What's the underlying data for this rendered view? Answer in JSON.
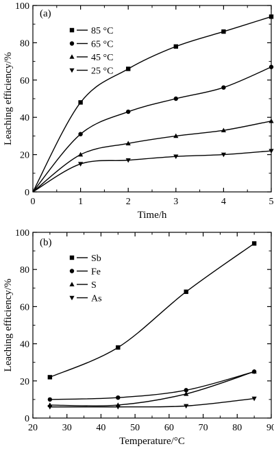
{
  "chart_data": [
    {
      "type": "scatter",
      "panel_label": "(a)",
      "xlabel": "Time/h",
      "ylabel": "Leaching efficiency/%",
      "xlim": [
        0,
        5
      ],
      "ylim": [
        0,
        100
      ],
      "xticks": [
        0,
        1,
        2,
        3,
        4,
        5
      ],
      "yticks": [
        0,
        20,
        40,
        60,
        80,
        100
      ],
      "legend_position": "top-left",
      "grid": false,
      "series": [
        {
          "name": "85 °C",
          "marker": "square",
          "x": [
            0,
            1,
            2,
            3,
            4,
            5
          ],
          "y": [
            0,
            48,
            66,
            78,
            86,
            94
          ]
        },
        {
          "name": "65 °C",
          "marker": "circle",
          "x": [
            0,
            1,
            2,
            3,
            4,
            5
          ],
          "y": [
            0,
            31,
            43,
            50,
            56,
            67
          ]
        },
        {
          "name": "45 °C",
          "marker": "triangle-up",
          "x": [
            0,
            1,
            2,
            3,
            4,
            5
          ],
          "y": [
            0,
            20,
            26,
            30,
            33,
            38
          ]
        },
        {
          "name": "25 °C",
          "marker": "triangle-down",
          "x": [
            0,
            1,
            2,
            3,
            4,
            5
          ],
          "y": [
            0,
            15,
            17,
            19,
            20,
            22
          ]
        }
      ]
    },
    {
      "type": "scatter",
      "panel_label": "(b)",
      "xlabel": "Temperature/°C",
      "ylabel": "Leaching efficiency/%",
      "xlim": [
        20,
        90
      ],
      "ylim": [
        0,
        100
      ],
      "xticks": [
        20,
        30,
        40,
        50,
        60,
        70,
        80,
        90
      ],
      "yticks": [
        0,
        20,
        40,
        60,
        80,
        100
      ],
      "legend_position": "top-left",
      "grid": false,
      "series": [
        {
          "name": "Sb",
          "marker": "square",
          "x": [
            25,
            45,
            65,
            85
          ],
          "y": [
            22,
            38,
            68,
            94
          ]
        },
        {
          "name": "Fe",
          "marker": "circle",
          "x": [
            25,
            45,
            65,
            85
          ],
          "y": [
            10,
            11,
            15,
            25
          ]
        },
        {
          "name": "S",
          "marker": "triangle-up",
          "x": [
            25,
            45,
            65,
            85
          ],
          "y": [
            7,
            7,
            13,
            25
          ]
        },
        {
          "name": "As",
          "marker": "triangle-down",
          "x": [
            25,
            45,
            65,
            85
          ],
          "y": [
            6,
            6,
            6.5,
            10.5
          ]
        }
      ]
    }
  ]
}
